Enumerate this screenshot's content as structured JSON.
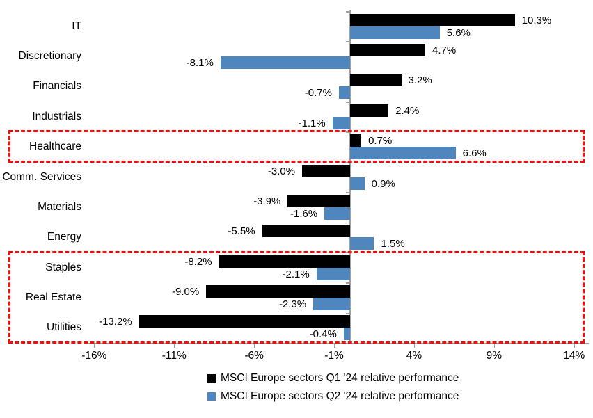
{
  "chart_data": {
    "type": "bar",
    "orientation": "horizontal",
    "title": "",
    "xlabel": "",
    "ylabel": "",
    "grid": false,
    "legend_position": "bottom",
    "categories": [
      "IT",
      "Discretionary",
      "Financials",
      "Industrials",
      "Healthcare",
      "Comm. Services",
      "Materials",
      "Energy",
      "Staples",
      "Real Estate",
      "Utilities"
    ],
    "series": [
      {
        "name": "MSCI Europe sectors Q1 '24 relative performance",
        "color": "#000000",
        "values": [
          10.3,
          4.7,
          3.2,
          2.4,
          0.7,
          -3.0,
          -3.9,
          -5.5,
          -8.2,
          -9.0,
          -13.2
        ],
        "labels": [
          "10.3%",
          "4.7%",
          "3.2%",
          "2.4%",
          "0.7%",
          "-3.0%",
          "-3.9%",
          "-5.5%",
          "-8.2%",
          "-9.0%",
          "-13.2%"
        ]
      },
      {
        "name": "MSCI Europe sectors Q2 '24 relative performance",
        "color": "#4F86BD",
        "values": [
          5.6,
          -8.1,
          -0.7,
          -1.1,
          6.6,
          0.9,
          -1.6,
          1.5,
          -2.1,
          -2.3,
          -0.4
        ],
        "labels": [
          "5.6%",
          "-8.1%",
          "-0.7%",
          "-1.1%",
          "6.6%",
          "0.9%",
          "-1.6%",
          "1.5%",
          "-2.1%",
          "-2.3%",
          "-0.4%"
        ]
      }
    ],
    "x_axis": {
      "tick_labels": [
        "-16%",
        "-11%",
        "-6%",
        "-1%",
        "4%",
        "9%",
        "14%"
      ],
      "tick_values": [
        -16,
        -11,
        -6,
        -1,
        4,
        9,
        14
      ],
      "min": -16.6,
      "max": 14.9,
      "axis_color": "#A0A0A0"
    },
    "highlights": [
      {
        "name": "healthcare-highlight-box",
        "rows": [
          4,
          4
        ],
        "color": "#FA0A0A"
      },
      {
        "name": "defensive-sectors-highlight-box",
        "rows": [
          8,
          10
        ],
        "color": "#FA0A0A"
      }
    ]
  }
}
